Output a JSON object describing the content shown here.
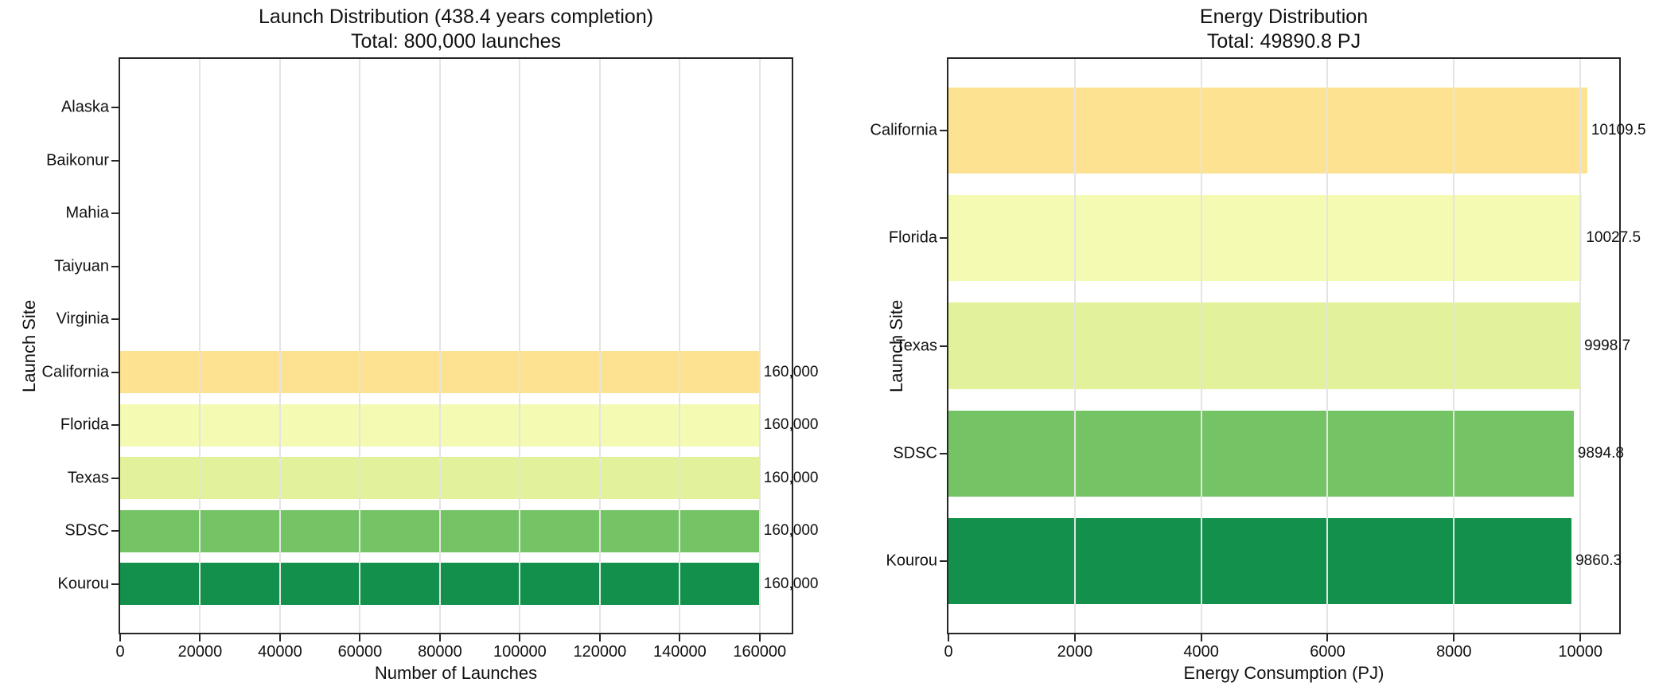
{
  "style": {
    "background": "#ffffff",
    "spine_color": "#262626",
    "grid_color": "#e4e4e4",
    "text_color": "#111111",
    "bar_palette": [
      "#fde292",
      "#f5fab3",
      "#e2f29b",
      "#74c466",
      "#13904b"
    ]
  },
  "chart_data": [
    {
      "type": "bar",
      "orientation": "horizontal",
      "title": "Launch Distribution (438.4 years completion)",
      "subtitle": "Total: 800,000 launches",
      "xlabel": "Number of Launches",
      "ylabel": "Launch Site",
      "categories": [
        "Alaska",
        "Baikonur",
        "Mahia",
        "Taiyuan",
        "Virginia",
        "California",
        "Florida",
        "Texas",
        "SDSC",
        "Kourou"
      ],
      "values": [
        0,
        0,
        0,
        0,
        0,
        160000,
        160000,
        160000,
        160000,
        160000
      ],
      "value_labels": [
        "",
        "",
        "",
        "",
        "",
        "160,000",
        "160,000",
        "160,000",
        "160,000",
        "160,000"
      ],
      "bar_colors": [
        null,
        null,
        null,
        null,
        null,
        "#fde292",
        "#f5fab3",
        "#e2f29b",
        "#74c466",
        "#13904b"
      ],
      "xlim": [
        0,
        168000
      ],
      "xticks": [
        0,
        20000,
        40000,
        60000,
        80000,
        100000,
        120000,
        140000,
        160000
      ],
      "xtick_labels": [
        "0",
        "20000",
        "40000",
        "60000",
        "80000",
        "100000",
        "120000",
        "140000",
        "160000"
      ],
      "grid": "vertical",
      "legend": null
    },
    {
      "type": "bar",
      "orientation": "horizontal",
      "title": "Energy Distribution",
      "subtitle": "Total: 49890.8 PJ",
      "xlabel": "Energy Consumption (PJ)",
      "ylabel": "Launch Site",
      "categories": [
        "California",
        "Florida",
        "Texas",
        "SDSC",
        "Kourou"
      ],
      "values": [
        10109.5,
        10027.5,
        9998.7,
        9894.8,
        9860.3
      ],
      "value_labels": [
        "10109.5",
        "10027.5",
        "9998.7",
        "9894.8",
        "9860.3"
      ],
      "bar_colors": [
        "#fde292",
        "#f5fab3",
        "#e2f29b",
        "#74c466",
        "#13904b"
      ],
      "xlim": [
        0,
        10615
      ],
      "xticks": [
        0,
        2000,
        4000,
        6000,
        8000,
        10000
      ],
      "xtick_labels": [
        "0",
        "2000",
        "4000",
        "6000",
        "8000",
        "10000"
      ],
      "grid": "vertical",
      "legend": null
    }
  ]
}
